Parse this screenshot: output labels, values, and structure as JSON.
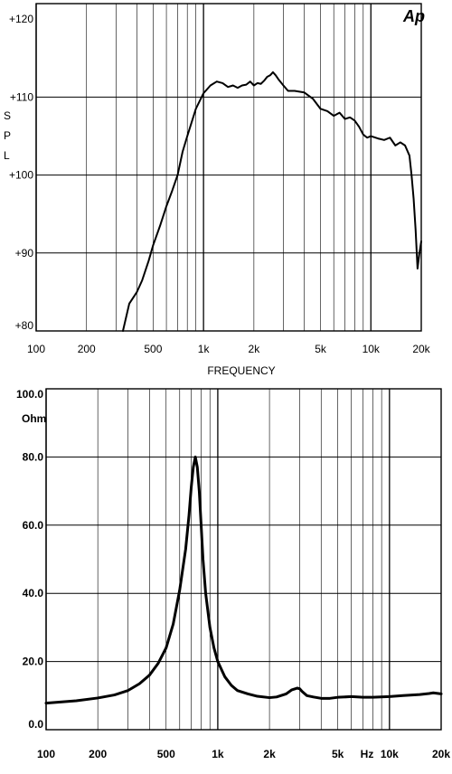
{
  "chart_data": [
    {
      "type": "line",
      "title": "",
      "xlabel": "FREQUENCY",
      "ylabel": "S P L",
      "logo": "Ap",
      "x_scale": "log",
      "xlim": [
        100,
        20000
      ],
      "ylim": [
        80,
        122
      ],
      "x_tick_labels": [
        "100",
        "200",
        "500",
        "1k",
        "2k",
        "5k",
        "10k",
        "20k"
      ],
      "y_tick_labels": [
        "+80",
        "+90",
        "+100",
        "+110",
        "+120"
      ],
      "grid": true,
      "series": [
        {
          "x": [
            330,
            360,
            400,
            430,
            470,
            500,
            550,
            600,
            650,
            700,
            750,
            800,
            900,
            1000,
            1100,
            1200,
            1300,
            1400,
            1500,
            1600,
            1700,
            1800,
            1900,
            2000,
            2100,
            2200,
            2300,
            2400,
            2500,
            2600,
            2700,
            2800,
            3000,
            3200,
            3500,
            4000,
            4500,
            5000,
            5500,
            6000,
            6500,
            7000,
            7500,
            8000,
            8500,
            9000,
            9500,
            10000,
            11000,
            12000,
            13000,
            14000,
            15000,
            16000,
            17000,
            17500,
            18000,
            18500,
            19000,
            19500,
            20000
          ],
          "y": [
            79.5,
            83.5,
            85,
            86.5,
            89,
            91,
            93.5,
            96,
            98,
            100,
            103,
            105,
            108.5,
            110.5,
            111.5,
            112,
            111.8,
            111.3,
            111.5,
            111.2,
            111.5,
            111.6,
            112,
            111.5,
            111.8,
            111.7,
            112.1,
            112.6,
            112.8,
            113.2,
            112.8,
            112.3,
            111.5,
            110.8,
            110.8,
            110.6,
            109.8,
            108.5,
            108.2,
            107.6,
            108,
            107.2,
            107.4,
            107,
            106.2,
            105.2,
            104.8,
            105,
            104.7,
            104.5,
            104.8,
            103.8,
            104.2,
            103.8,
            102.5,
            100,
            97,
            93,
            88,
            90,
            91.5
          ]
        }
      ]
    },
    {
      "type": "line",
      "title": "",
      "ylabel": "Ohm",
      "x_unit_label": "Hz",
      "x_scale": "log",
      "xlim": [
        100,
        20000
      ],
      "ylim": [
        0,
        100
      ],
      "x_tick_labels": [
        "100",
        "200",
        "500",
        "1k",
        "2k",
        "5k",
        "10k",
        "20k"
      ],
      "y_tick_labels": [
        "0.0",
        "20.0",
        "40.0",
        "60.0",
        "80.0",
        "100.0"
      ],
      "grid": true,
      "series": [
        {
          "x": [
            100,
            150,
            200,
            250,
            300,
            350,
            400,
            450,
            500,
            550,
            600,
            650,
            680,
            700,
            720,
            740,
            760,
            780,
            800,
            820,
            850,
            900,
            950,
            1000,
            1100,
            1200,
            1300,
            1500,
            1700,
            2000,
            2200,
            2500,
            2700,
            2900,
            3000,
            3100,
            3300,
            3600,
            4000,
            4500,
            5000,
            6000,
            7000,
            8000,
            10000,
            12000,
            15000,
            17000,
            18000,
            20000
          ],
          "y": [
            7.8,
            8.5,
            9.3,
            10.2,
            11.5,
            13.5,
            16,
            19.5,
            24,
            31,
            41,
            53,
            63,
            71,
            77,
            80,
            77,
            70,
            60,
            50,
            40,
            30,
            24,
            20,
            15.5,
            13,
            11.5,
            10.5,
            9.8,
            9.4,
            9.6,
            10.5,
            11.7,
            12.2,
            12,
            11.2,
            10,
            9.6,
            9.2,
            9.2,
            9.5,
            9.7,
            9.5,
            9.5,
            9.7,
            10,
            10.3,
            10.6,
            10.8,
            10.5
          ]
        }
      ]
    }
  ]
}
